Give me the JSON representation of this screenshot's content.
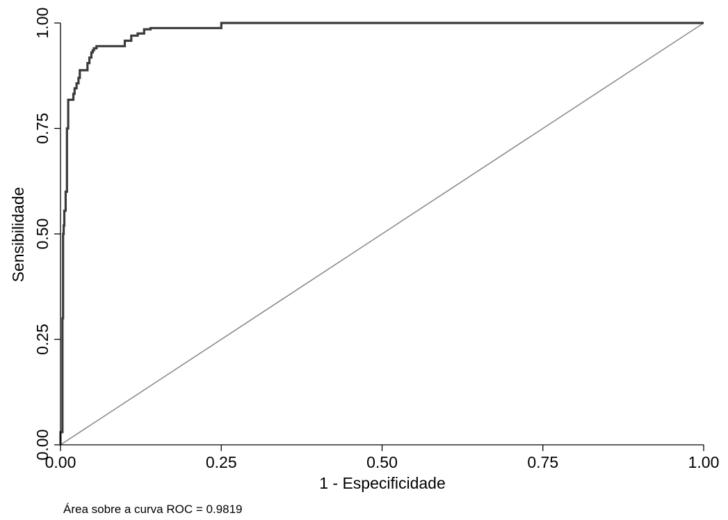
{
  "chart_data": {
    "type": "line",
    "title": "",
    "xlabel": "1 - Especificidade",
    "ylabel": "Sensibilidade",
    "xlim": [
      0,
      1
    ],
    "ylim": [
      0,
      1
    ],
    "xticks": [
      0,
      0.25,
      0.5,
      0.75,
      1
    ],
    "yticks": [
      0,
      0.25,
      0.5,
      0.75,
      1
    ],
    "x_tick_labels": [
      "0.00",
      "0.25",
      "0.50",
      "0.75",
      "1.00"
    ],
    "y_tick_labels": [
      "0.00",
      "0.25",
      "0.50",
      "0.75",
      "1.00"
    ],
    "grid": false,
    "colors": {
      "roc": "#3a3a3a",
      "reference": "#8c8c8c",
      "axis": "#000000"
    },
    "series": [
      {
        "x": [
          0,
          0.0,
          0.003,
          0.003,
          0.004,
          0.004,
          0.005,
          0.005,
          0.006,
          0.006,
          0.008,
          0.008,
          0.01,
          0.01,
          0.012,
          0.012,
          0.014,
          0.014,
          0.02,
          0.02,
          0.022,
          0.022,
          0.025,
          0.025,
          0.028,
          0.028,
          0.03,
          0.03,
          0.032,
          0.032,
          0.042,
          0.042,
          0.045,
          0.045,
          0.048,
          0.048,
          0.05,
          0.05,
          0.052,
          0.052,
          0.056,
          0.056,
          0.06,
          0.06,
          0.1,
          0.1,
          0.11,
          0.11,
          0.12,
          0.12,
          0.13,
          0.13,
          0.14,
          0.14,
          0.25,
          0.25,
          1.0
        ],
        "y": [
          0,
          0.03,
          0.03,
          0.3,
          0.3,
          0.5,
          0.5,
          0.52,
          0.52,
          0.555,
          0.555,
          0.6,
          0.6,
          0.75,
          0.75,
          0.818,
          0.818,
          0.818,
          0.818,
          0.832,
          0.832,
          0.845,
          0.845,
          0.857,
          0.857,
          0.87,
          0.87,
          0.888,
          0.888,
          0.888,
          0.888,
          0.905,
          0.905,
          0.918,
          0.918,
          0.93,
          0.93,
          0.935,
          0.935,
          0.94,
          0.94,
          0.945,
          0.945,
          0.945,
          0.945,
          0.958,
          0.958,
          0.97,
          0.97,
          0.975,
          0.975,
          0.985,
          0.985,
          0.988,
          0.988,
          1.0,
          1.0
        ]
      },
      {
        "x": [
          0,
          1
        ],
        "y": [
          0,
          1
        ]
      }
    ],
    "annotations": [
      "Área sobre a curva ROC = 0.9819"
    ]
  }
}
